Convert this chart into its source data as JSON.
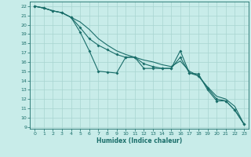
{
  "title": "",
  "xlabel": "Humidex (Indice chaleur)",
  "bg_color": "#c8ece9",
  "grid_color": "#a8d4d0",
  "line_color": "#1a6e6a",
  "xlim": [
    -0.5,
    23.5
  ],
  "ylim": [
    8.8,
    22.5
  ],
  "yticks": [
    9,
    10,
    11,
    12,
    13,
    14,
    15,
    16,
    17,
    18,
    19,
    20,
    21,
    22
  ],
  "xticks": [
    0,
    1,
    2,
    3,
    4,
    5,
    6,
    7,
    8,
    9,
    10,
    11,
    12,
    13,
    14,
    15,
    16,
    17,
    18,
    19,
    20,
    21,
    22,
    23
  ],
  "line1_x": [
    0,
    1,
    2,
    3,
    4,
    5,
    6,
    7,
    8,
    9,
    10,
    11,
    12,
    13,
    14,
    15,
    16,
    17,
    18,
    19,
    20,
    21,
    22,
    23
  ],
  "line1_y": [
    22,
    21.8,
    21.5,
    21.3,
    20.8,
    19.2,
    17.2,
    15.0,
    14.9,
    14.8,
    16.5,
    16.5,
    15.3,
    15.3,
    15.3,
    15.3,
    17.2,
    14.8,
    14.7,
    13.0,
    11.8,
    11.8,
    10.8,
    9.3
  ],
  "line2_x": [
    0,
    1,
    2,
    3,
    4,
    5,
    6,
    7,
    8,
    9,
    10,
    11,
    12,
    13,
    14,
    15,
    16,
    17,
    18,
    19,
    20,
    21,
    22,
    23
  ],
  "line2_y": [
    22,
    21.8,
    21.5,
    21.3,
    20.8,
    20.3,
    19.5,
    18.5,
    17.8,
    17.2,
    16.8,
    16.5,
    16.2,
    16.0,
    15.7,
    15.5,
    16.1,
    15.0,
    14.5,
    13.3,
    12.3,
    12.0,
    11.2,
    9.3
  ],
  "line3_x": [
    0,
    1,
    2,
    3,
    4,
    5,
    6,
    7,
    8,
    9,
    10,
    11,
    12,
    13,
    14,
    15,
    16,
    17,
    18,
    19,
    20,
    21,
    22,
    23
  ],
  "line3_y": [
    22,
    21.8,
    21.5,
    21.3,
    20.8,
    19.7,
    18.5,
    17.8,
    17.3,
    16.8,
    16.5,
    16.5,
    15.8,
    15.5,
    15.3,
    15.3,
    16.5,
    14.8,
    14.5,
    13.2,
    12.0,
    11.8,
    10.8,
    9.3
  ]
}
